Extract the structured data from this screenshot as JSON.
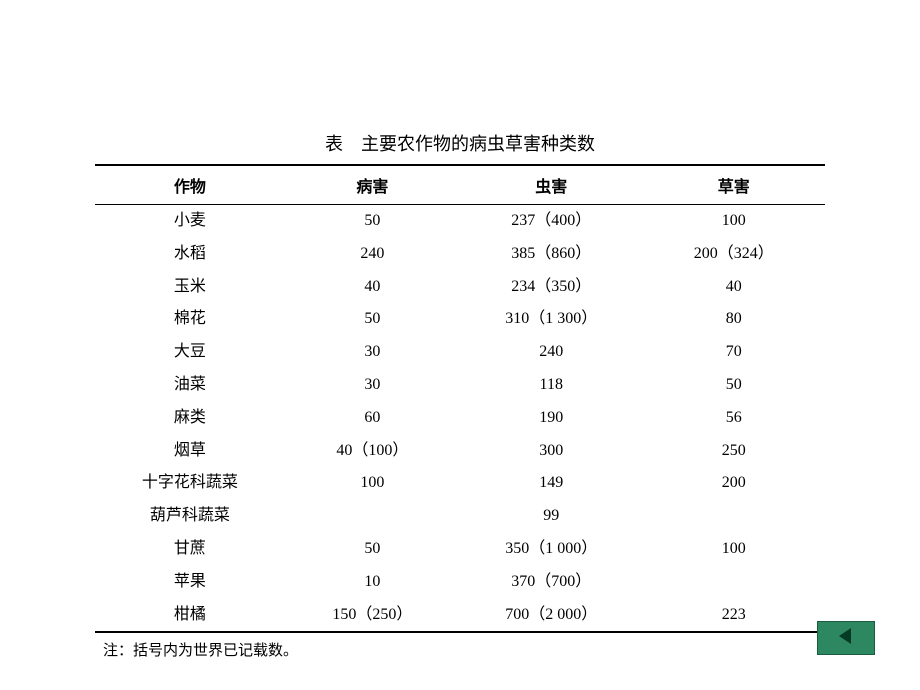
{
  "title": "表　主要农作物的病虫草害种类数",
  "columns": [
    "作物",
    "病害",
    "虫害",
    "草害"
  ],
  "rows": [
    [
      "小麦",
      "50",
      "237（400）",
      "100"
    ],
    [
      "水稻",
      "240",
      "385（860）",
      "200（324）"
    ],
    [
      "玉米",
      "40",
      "234（350）",
      "40"
    ],
    [
      "棉花",
      "50",
      "310（1 300）",
      "80"
    ],
    [
      "大豆",
      "30",
      "240",
      "70"
    ],
    [
      "油菜",
      "30",
      "118",
      "50"
    ],
    [
      "麻类",
      "60",
      "190",
      "56"
    ],
    [
      "烟草",
      "40（100）",
      "300",
      "250"
    ],
    [
      "十字花科蔬菜",
      "100",
      "149",
      "200"
    ],
    [
      "葫芦科蔬菜",
      "",
      "99",
      ""
    ],
    [
      "甘蔗",
      "50",
      "350（1 000）",
      "100"
    ],
    [
      "苹果",
      "10",
      "370（700）",
      ""
    ],
    [
      "柑橘",
      "150（250）",
      "700（2 000）",
      "223"
    ]
  ],
  "footnote": "注：括号内为世界已记载数。",
  "nav_button_color": "#2d8861",
  "nav_arrow_color": "#053a24"
}
